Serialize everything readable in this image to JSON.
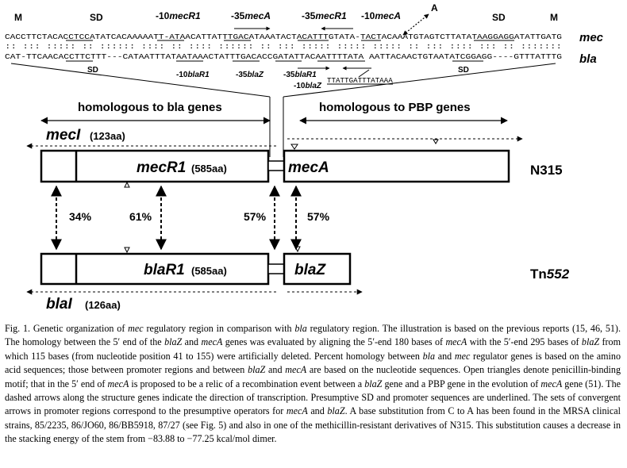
{
  "sequence": {
    "top_markers": [
      {
        "label": "M"
      },
      {
        "label": "SD"
      },
      {
        "pre": "-10",
        "gene": "mecR1"
      },
      {
        "pre": "-35",
        "gene": "mecA"
      },
      {
        "pre": "-35",
        "gene": "mecR1"
      },
      {
        "pre": "-10",
        "gene": "mecA"
      },
      {
        "label": "SD"
      },
      {
        "label": "M"
      }
    ],
    "substitution_label": "A",
    "mec_line": "CACCTTCTACACCTCCATATCACAAAAATT-ATAACATTATTTGACATAAATACTACATTTGTATA-TACTACAAATGTAGTCTTATATAAGGAGGATATTGATG",
    "match_line": ":: ::: ::::: ::  :::::: :::: :: :::: :::::: :: :::  ::::: :::::   ::::: :: ::: ::::  ::: ::   :::::::",
    "bla_line": "CAT-TTCAACACCTTCTTT---CATAATTTATAATAAACTATTTGACACCGATATTACAATTTTATA  AATTACAACTGTAATATCGGAGG----GTTTATTTG",
    "extra_line": "TTATTGATTTATAAA",
    "mec_label": "mec",
    "bla_label": "bla",
    "bottom_markers": [
      {
        "label": "SD"
      },
      {
        "pre": "-10",
        "gene": "blaR1"
      },
      {
        "pre": "-35",
        "gene": "blaZ"
      },
      {
        "pre": "-35",
        "gene": "blaR1"
      },
      {
        "pre": "-10",
        "gene": "blaZ"
      },
      {
        "label": "SD"
      }
    ]
  },
  "map": {
    "homologous_bla": "homologous to bla genes",
    "homologous_pbp": "homologous to PBP genes",
    "mecI_name": "mecI",
    "mecI_size": "(123aa)",
    "mecR1_name": "mecR1",
    "mecR1_size": "(585aa)",
    "mecA_name": "mecA",
    "strain_top": "N315",
    "pct_1": "34%",
    "pct_2": "61%",
    "pct_3": "57%",
    "pct_4": "57%",
    "blaR1_name": "blaR1",
    "blaR1_size": "(585aa)",
    "blaZ_name": "blaZ",
    "strain_bottom_prefix": "Tn",
    "strain_bottom_num": "552",
    "blaI_name": "blaI",
    "blaI_size": "(126aa)"
  },
  "caption": {
    "label": "Fig. 1.",
    "segments": [
      {
        "t": "Genetic organization of "
      },
      {
        "t": "mec",
        "i": true
      },
      {
        "t": " regulatory region in comparison with "
      },
      {
        "t": "bla",
        "i": true
      },
      {
        "t": " regulatory region. The illustration is based on the previous reports (15, 46, 51). The homology between the 5′ end of the "
      },
      {
        "t": "blaZ",
        "i": true
      },
      {
        "t": " and "
      },
      {
        "t": "mecA",
        "i": true
      },
      {
        "t": " genes was evaluated by aligning the 5′-end 180 bases of "
      },
      {
        "t": "mecA",
        "i": true
      },
      {
        "t": " with the 5′-end 295 bases of "
      },
      {
        "t": "blaZ",
        "i": true
      },
      {
        "t": " from which 115 bases (from nucleotide position 41 to 155) were artificially deleted. Percent homology between "
      },
      {
        "t": "bla",
        "i": true
      },
      {
        "t": " and "
      },
      {
        "t": "mec",
        "i": true
      },
      {
        "t": " regulator genes is based on the amino acid sequences; those between promoter regions and between "
      },
      {
        "t": "blaZ",
        "i": true
      },
      {
        "t": " and "
      },
      {
        "t": "mecA",
        "i": true
      },
      {
        "t": " are based on the nucleotide sequences. Open triangles denote penicillin-binding motif; that in the 5′ end of "
      },
      {
        "t": "mecA",
        "i": true
      },
      {
        "t": " is proposed to be a relic of a recombination event between a "
      },
      {
        "t": "blaZ",
        "i": true
      },
      {
        "t": " gene and a PBP gene in the evolution of "
      },
      {
        "t": "mecA",
        "i": true
      },
      {
        "t": " gene (51). The dashed arrows along the structure genes indicate the direction of transcription. Presumptive SD and promoter sequences are underlined. The sets of convergent arrows in promoter regions correspond to the presumptive operators for "
      },
      {
        "t": "mecA",
        "i": true
      },
      {
        "t": " and "
      },
      {
        "t": "blaZ",
        "i": true
      },
      {
        "t": ". A base substitution from C to A has been found in the MRSA clinical strains, 85/2235, 86/JO60, 86/BB5918, 87/27 (see Fig. 5) and also in one of the methicillin-resistant derivatives of N315. This substitution causes a decrease in the stacking energy of the stem from −83.88 to −77.25 kcal/mol dimer."
      }
    ]
  }
}
